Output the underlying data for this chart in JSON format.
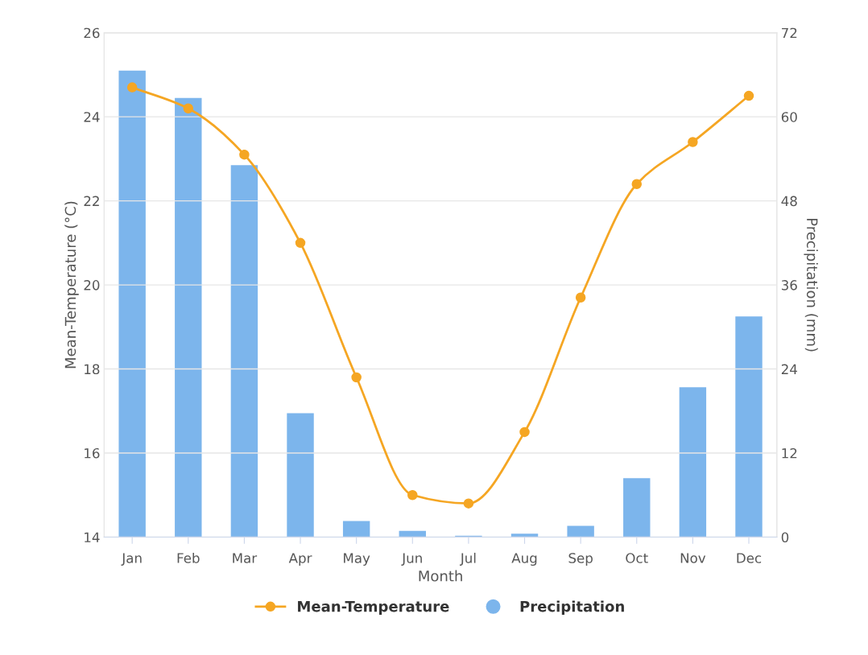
{
  "chart_data": {
    "type": "bar",
    "xlabel": "Month",
    "ylabel": "Mean-Temperature (°C)",
    "y2label": "Precipitation (mm)",
    "categories": [
      "Jan",
      "Feb",
      "Mar",
      "Apr",
      "May",
      "Jun",
      "Jul",
      "Aug",
      "Sep",
      "Oct",
      "Nov",
      "Dec"
    ],
    "series": [
      {
        "name": "Mean-Temperature",
        "type": "line",
        "color": "#f5a623",
        "marker": "circle",
        "values": [
          24.7,
          24.2,
          23.1,
          21.0,
          17.8,
          15.0,
          14.8,
          16.5,
          19.7,
          22.4,
          23.4,
          24.5
        ]
      },
      {
        "name": "Precipitation",
        "axis": "y2",
        "color": "#7cb5ec",
        "values": [
          66.6,
          62.7,
          53.1,
          17.7,
          2.3,
          0.9,
          0.2,
          0.5,
          1.6,
          8.4,
          21.4,
          31.5
        ]
      }
    ],
    "ylim": [
      14,
      26
    ],
    "yticks": [
      14,
      16,
      18,
      20,
      22,
      24,
      26
    ],
    "y2lim": [
      0,
      72
    ],
    "y2ticks": [
      0,
      12,
      24,
      36,
      48,
      60,
      72
    ],
    "grid": "y",
    "legend": "bottom"
  }
}
